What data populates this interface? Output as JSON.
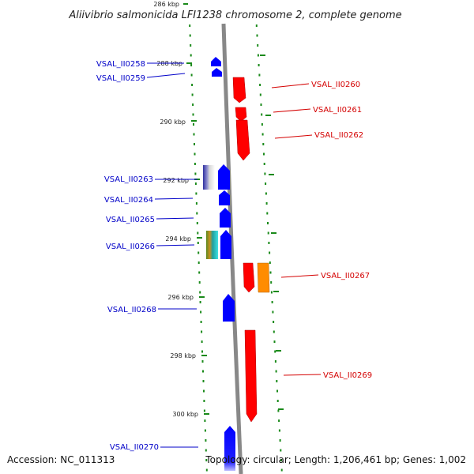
{
  "title": "Aliivibrio salmonicida LFI1238 chromosome 2, complete genome",
  "ticks": [
    "286 kbp",
    "288 kbp",
    "290 kbp",
    "292 kbp",
    "294 kbp",
    "296 kbp",
    "298 kbp",
    "300 kbp"
  ],
  "genes_plus": [
    "VSAL_II0260",
    "VSAL_II0261",
    "VSAL_II0262",
    "VSAL_II0267",
    "VSAL_II0269"
  ],
  "genes_minus": [
    "VSAL_II0258",
    "VSAL_II0259",
    "VSAL_II0263",
    "VSAL_II0264",
    "VSAL_II0265",
    "VSAL_II0266",
    "VSAL_II0268",
    "VSAL_II0270"
  ],
  "footer": {
    "accession": "Accession: NC_011313",
    "topology": "Topology: circular; Length: 1,206,461 bp; Genes: 1,002"
  },
  "colors": {
    "plus_strand": "#ff0000",
    "minus_strand": "#0000ff",
    "label_plus": "#d40000",
    "label_minus": "#0000c8",
    "backbone": "#888888",
    "dots": "#1a8a1a",
    "orange": "#ff8c00"
  }
}
